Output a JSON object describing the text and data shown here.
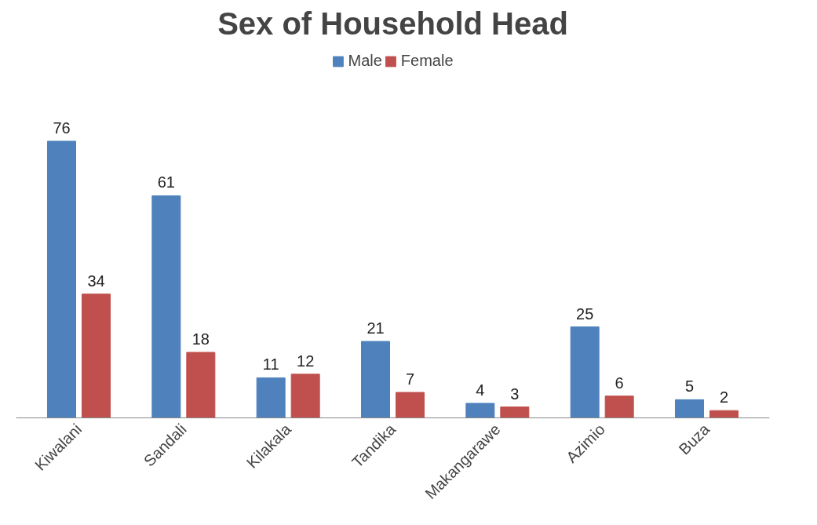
{
  "chart_data": {
    "type": "bar",
    "title": "Sex of Household Head",
    "categories": [
      "Kiwalani",
      "Sandali",
      "Kilakala",
      "Tandika",
      "Makangarawe",
      "Azimio",
      "Buza"
    ],
    "series": [
      {
        "name": "Male",
        "color": "#4f81bd",
        "values": [
          76,
          61,
          11,
          21,
          4,
          25,
          5
        ]
      },
      {
        "name": "Female",
        "color": "#c0504d",
        "values": [
          34,
          18,
          12,
          7,
          3,
          6,
          2
        ]
      }
    ],
    "data_labels": true,
    "grid": false,
    "legend": "top"
  }
}
